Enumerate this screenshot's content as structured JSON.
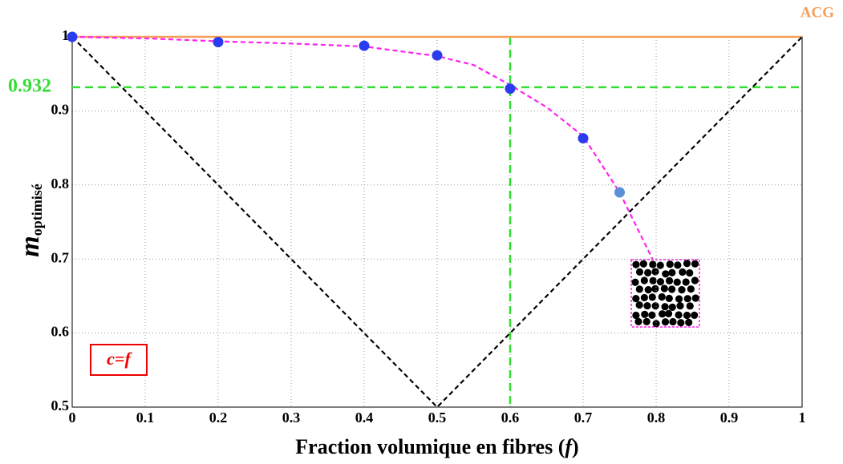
{
  "chart_data": {
    "type": "scatter",
    "brand": "ACG",
    "annotation": "c=f",
    "ylabel": [
      "m",
      "optimisé"
    ],
    "xlabel": [
      "Fraction volumique  en fibres (",
      "f",
      ")"
    ],
    "xlim": [
      0,
      1
    ],
    "ylim": [
      0.5,
      1
    ],
    "xticks": [
      0,
      0.1,
      0.2,
      0.3,
      0.4,
      0.5,
      0.6,
      0.7,
      0.8,
      0.9,
      1
    ],
    "yticks": [
      0.5,
      0.6,
      0.7,
      0.8,
      0.9,
      1
    ],
    "grid": true,
    "hlines": [
      {
        "value": 1,
        "color": "#f5a05a",
        "dashed": false,
        "labeled": false
      },
      {
        "value": 0.932,
        "color": "#33dd33",
        "dashed": true,
        "labeled": true
      }
    ],
    "vlines": [
      {
        "value": 0.6,
        "color": "#33dd33",
        "dashed": true
      }
    ],
    "series": [
      {
        "mode": "lines",
        "color": "#000000",
        "dashed": true,
        "x": [
          0,
          0.5,
          1
        ],
        "y": [
          1,
          0.5,
          1
        ]
      },
      {
        "mode": "lines",
        "color": "#ff22ee",
        "dashed": true,
        "x": [
          0,
          0.1,
          0.2,
          0.3,
          0.4,
          0.5,
          0.55,
          0.6,
          0.65,
          0.7,
          0.75,
          0.78,
          0.795
        ],
        "y": [
          1,
          0.998,
          0.994,
          0.991,
          0.987,
          0.974,
          0.962,
          0.935,
          0.905,
          0.866,
          0.79,
          0.73,
          0.7
        ]
      },
      {
        "mode": "markers",
        "color": "#2b3cf0",
        "colors": [
          "#2b3cf0",
          "#2b3cf0",
          "#2b3cf0",
          "#2b3cf0",
          "#2b3cf0",
          "#2b3cf0",
          "#5b8fd8"
        ],
        "x": [
          0,
          0.2,
          0.4,
          0.5,
          0.6,
          0.7,
          0.75
        ],
        "y": [
          1,
          0.993,
          0.988,
          0.975,
          0.93,
          0.863,
          0.79
        ]
      }
    ]
  }
}
